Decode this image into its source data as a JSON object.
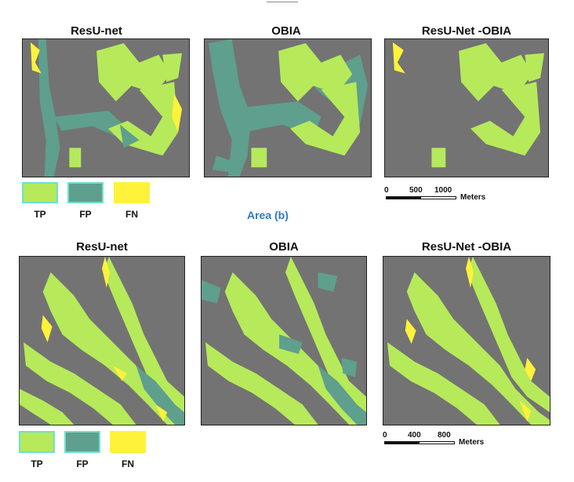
{
  "figure": {
    "top": {
      "titles": [
        "ResU-net",
        "OBIA",
        "ResU-Net -OBIA"
      ],
      "legend": [
        "TP",
        "FP",
        "FN"
      ],
      "scale": {
        "ticks": [
          "0",
          "500",
          "1000"
        ],
        "unit": "Meters"
      }
    },
    "caption_b": "Area (b)",
    "bottom": {
      "titles": [
        "ResU-net",
        "OBIA",
        "ResU-Net -OBIA"
      ],
      "legend": [
        "TP",
        "FP",
        "FN"
      ],
      "scale": {
        "ticks": [
          "0",
          "400",
          "800"
        ],
        "unit": "Meters"
      }
    },
    "colors": {
      "background": "#737373",
      "tp": "#b6ea5a",
      "fp": "#5f9f8d",
      "fn": "#fff23a",
      "legend_border": "#6fe0d0",
      "caption": "#2e7ac0"
    }
  }
}
